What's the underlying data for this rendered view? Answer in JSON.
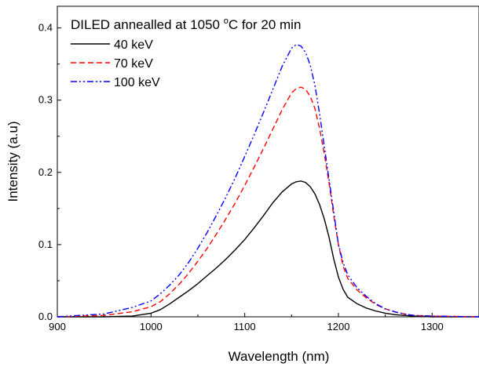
{
  "chart_data": {
    "type": "line",
    "annotation": {
      "prefix": "DILED annealled at 1050 ",
      "superscript": "o",
      "suffix": "C for 20 min"
    },
    "xlabel": "Wavelength (nm)",
    "ylabel": "Intensity (a.u)",
    "xlim": [
      900,
      1350
    ],
    "ylim": [
      0,
      0.43
    ],
    "x_ticks": [
      900,
      1000,
      1100,
      1200,
      1300
    ],
    "y_ticks": [
      0.0,
      0.1,
      0.2,
      0.3,
      0.4
    ],
    "y_tick_labels": [
      "0.0",
      "0.1",
      "0.2",
      "0.3",
      "0.4"
    ],
    "grid": false,
    "legend_position": "top-left",
    "series": [
      {
        "name": "40 keV",
        "color": "#000000",
        "dash": "solid",
        "x": [
          900,
          950,
          980,
          1000,
          1010,
          1020,
          1030,
          1040,
          1050,
          1060,
          1070,
          1080,
          1090,
          1100,
          1110,
          1120,
          1130,
          1140,
          1150,
          1155,
          1160,
          1165,
          1170,
          1175,
          1180,
          1185,
          1190,
          1195,
          1200,
          1205,
          1210,
          1220,
          1230,
          1240,
          1250,
          1260,
          1270,
          1280,
          1300,
          1350
        ],
        "y": [
          0.0,
          0.0,
          0.001,
          0.005,
          0.01,
          0.018,
          0.027,
          0.036,
          0.046,
          0.057,
          0.068,
          0.08,
          0.093,
          0.107,
          0.123,
          0.14,
          0.158,
          0.173,
          0.184,
          0.187,
          0.188,
          0.186,
          0.18,
          0.17,
          0.155,
          0.135,
          0.11,
          0.08,
          0.055,
          0.038,
          0.027,
          0.018,
          0.012,
          0.008,
          0.005,
          0.003,
          0.002,
          0.001,
          0.0,
          0.0
        ]
      },
      {
        "name": "70 keV",
        "color": "#ff0000",
        "dash": "dashed",
        "x": [
          900,
          950,
          980,
          1000,
          1010,
          1020,
          1030,
          1040,
          1050,
          1060,
          1070,
          1080,
          1090,
          1100,
          1110,
          1120,
          1130,
          1140,
          1150,
          1155,
          1160,
          1165,
          1170,
          1175,
          1180,
          1185,
          1190,
          1195,
          1200,
          1205,
          1210,
          1220,
          1230,
          1240,
          1250,
          1260,
          1270,
          1280,
          1300,
          1350
        ],
        "y": [
          0.0,
          0.002,
          0.007,
          0.014,
          0.021,
          0.032,
          0.045,
          0.06,
          0.077,
          0.095,
          0.115,
          0.136,
          0.158,
          0.182,
          0.207,
          0.233,
          0.26,
          0.287,
          0.31,
          0.316,
          0.318,
          0.315,
          0.305,
          0.288,
          0.26,
          0.225,
          0.185,
          0.14,
          0.1,
          0.07,
          0.053,
          0.037,
          0.026,
          0.017,
          0.011,
          0.007,
          0.004,
          0.002,
          0.001,
          0.0
        ]
      },
      {
        "name": "100 keV",
        "color": "#0000ff",
        "dash": "dash-dot-dot",
        "x": [
          900,
          950,
          980,
          1000,
          1010,
          1020,
          1030,
          1040,
          1050,
          1060,
          1070,
          1080,
          1090,
          1100,
          1110,
          1120,
          1130,
          1140,
          1150,
          1155,
          1160,
          1165,
          1170,
          1175,
          1180,
          1185,
          1190,
          1195,
          1200,
          1205,
          1210,
          1220,
          1230,
          1240,
          1250,
          1260,
          1270,
          1280,
          1300,
          1350
        ],
        "y": [
          0.0,
          0.004,
          0.013,
          0.022,
          0.032,
          0.044,
          0.058,
          0.075,
          0.095,
          0.117,
          0.141,
          0.166,
          0.193,
          0.222,
          0.252,
          0.283,
          0.315,
          0.347,
          0.372,
          0.377,
          0.375,
          0.366,
          0.348,
          0.32,
          0.28,
          0.235,
          0.19,
          0.145,
          0.1,
          0.075,
          0.058,
          0.04,
          0.028,
          0.018,
          0.011,
          0.007,
          0.004,
          0.002,
          0.001,
          0.0
        ]
      }
    ]
  }
}
